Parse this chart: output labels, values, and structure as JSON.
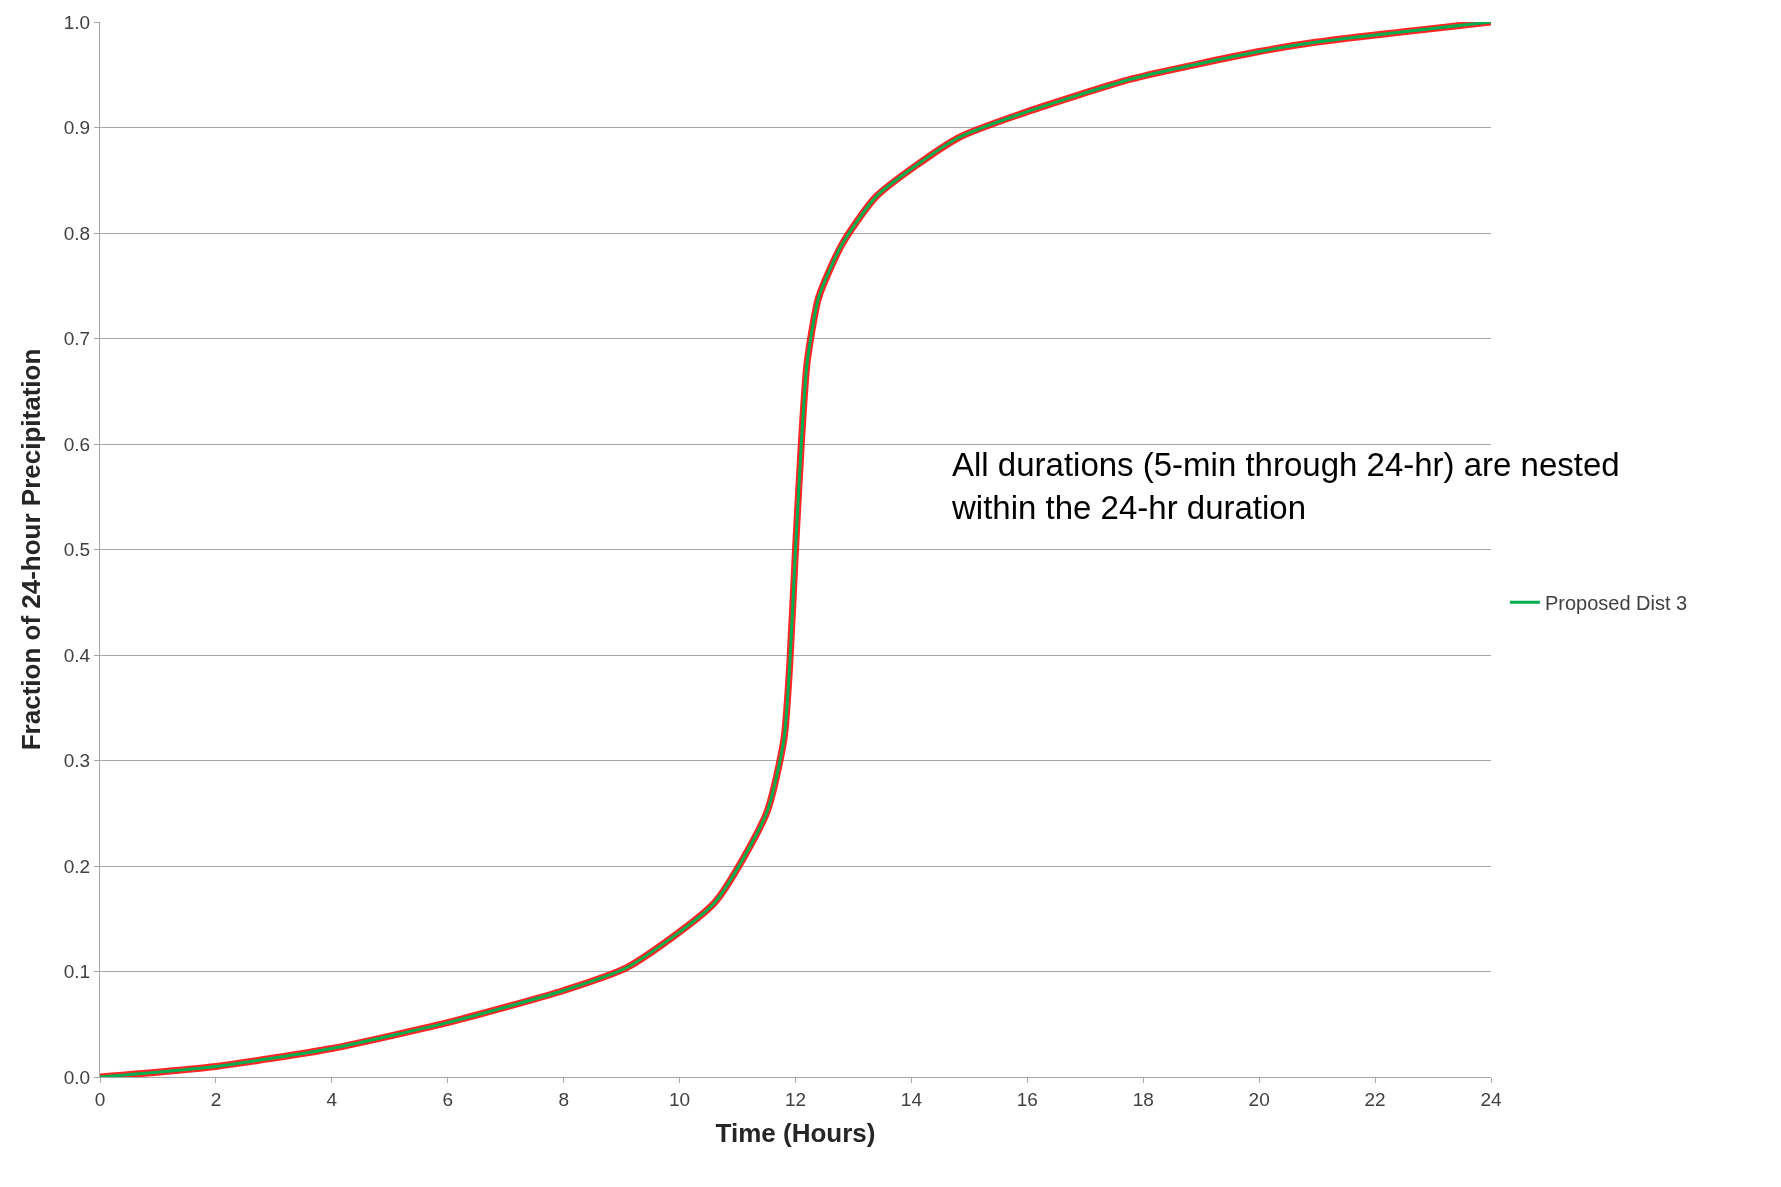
{
  "chart_data": {
    "type": "line",
    "xlabel": "Time (Hours)",
    "ylabel": "Fraction of 24-hour Precipitation",
    "x": [
      0,
      2,
      4,
      6.1,
      8,
      9.1,
      10.6,
      11.5,
      11.8,
      11.9,
      12.0,
      12.1,
      12.2,
      12.4,
      12.8,
      13.4,
      14.8,
      16,
      17.8,
      20,
      21,
      24
    ],
    "series": [
      {
        "name": "Proposed Dist 3",
        "color": "#00b050",
        "values": [
          0,
          0.01,
          0.027,
          0.053,
          0.082,
          0.104,
          0.165,
          0.25,
          0.32,
          0.39,
          0.5,
          0.6,
          0.677,
          0.739,
          0.789,
          0.835,
          0.89,
          0.915,
          0.946,
          0.972,
          0.981,
          1.0
        ]
      },
      {
        "color": "#ff0000",
        "values": [
          0,
          0.01,
          0.027,
          0.053,
          0.082,
          0.104,
          0.165,
          0.25,
          0.32,
          0.39,
          0.5,
          0.6,
          0.677,
          0.739,
          0.789,
          0.835,
          0.89,
          0.915,
          0.946,
          0.972,
          0.981,
          1.0
        ]
      }
    ],
    "xlim": [
      0,
      24
    ],
    "xticks": [
      0,
      2,
      4,
      6,
      8,
      10,
      12,
      14,
      16,
      18,
      20,
      22,
      24
    ],
    "ylim": [
      0,
      1.0
    ],
    "yticks": [
      {
        "value": 0,
        "label": "0.0"
      },
      {
        "value": 0.1,
        "label": "0.1"
      },
      {
        "value": 0.2,
        "label": "0.2"
      },
      {
        "value": 0.3,
        "label": "0.3"
      },
      {
        "value": 0.4,
        "label": "0.4"
      },
      {
        "value": 0.5,
        "label": "0.5"
      },
      {
        "value": 0.6,
        "label": "0.6"
      },
      {
        "value": 0.7,
        "label": "0.7"
      },
      {
        "value": 0.8,
        "label": "0.8"
      },
      {
        "value": 0.9,
        "label": "0.9"
      },
      {
        "value": 1.0,
        "label": "1.0"
      }
    ],
    "grid": "y",
    "legend": "right",
    "annotations": [
      "All durations (5-min through 24-hr) are nested\nwithin the 24-hr duration"
    ]
  }
}
